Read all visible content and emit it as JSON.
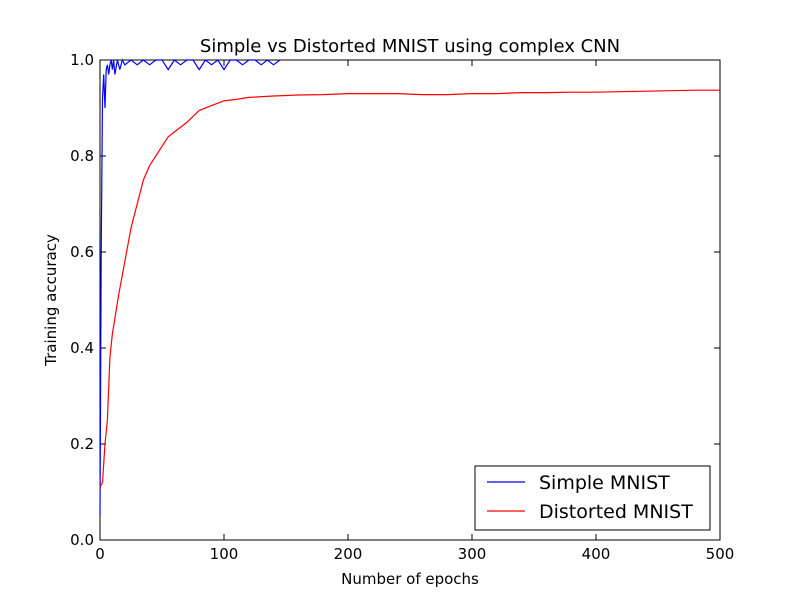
{
  "chart_data": {
    "type": "line",
    "title": "Simple vs Distorted MNIST using complex CNN",
    "xlabel": "Number of epochs",
    "ylabel": "Training accuracy",
    "xlim": [
      0,
      500
    ],
    "ylim": [
      0.0,
      1.0
    ],
    "xticks": [
      "0",
      "100",
      "200",
      "300",
      "400",
      "500"
    ],
    "yticks": [
      "0.0",
      "0.2",
      "0.4",
      "0.6",
      "0.8",
      "1.0"
    ],
    "grid": false,
    "legend_position": "lower-right",
    "series": [
      {
        "name": "Simple MNIST",
        "color": "#0000ff",
        "x": [
          0,
          1,
          2,
          3,
          4,
          5,
          6,
          7,
          8,
          9,
          10,
          11,
          12,
          14,
          16,
          18,
          20,
          25,
          30,
          35,
          40,
          45,
          50,
          55,
          60,
          65,
          70,
          75,
          80,
          85,
          90,
          95,
          100,
          105,
          110,
          115,
          120,
          125,
          130,
          135,
          140,
          145
        ],
        "y": [
          0.05,
          0.6,
          0.92,
          0.97,
          0.9,
          0.98,
          0.99,
          0.97,
          0.99,
          1.0,
          0.98,
          1.0,
          0.97,
          1.0,
          0.98,
          1.0,
          0.99,
          1.0,
          0.99,
          1.0,
          0.99,
          1.0,
          1.0,
          0.98,
          1.0,
          0.99,
          1.0,
          1.0,
          0.98,
          1.0,
          0.99,
          1.0,
          0.98,
          1.0,
          1.0,
          0.99,
          1.0,
          1.0,
          0.99,
          1.0,
          0.99,
          1.0
        ]
      },
      {
        "name": "Distorted MNIST",
        "color": "#ff0000",
        "x": [
          0,
          2,
          4,
          6,
          8,
          10,
          15,
          20,
          25,
          30,
          35,
          40,
          45,
          50,
          55,
          60,
          70,
          80,
          90,
          100,
          110,
          120,
          140,
          160,
          180,
          200,
          220,
          240,
          260,
          280,
          300,
          320,
          340,
          360,
          380,
          400,
          420,
          440,
          460,
          480,
          500
        ],
        "y": [
          0.11,
          0.12,
          0.2,
          0.25,
          0.38,
          0.43,
          0.51,
          0.58,
          0.65,
          0.7,
          0.75,
          0.78,
          0.8,
          0.82,
          0.84,
          0.85,
          0.87,
          0.895,
          0.905,
          0.915,
          0.918,
          0.922,
          0.925,
          0.927,
          0.928,
          0.93,
          0.93,
          0.93,
          0.928,
          0.928,
          0.93,
          0.93,
          0.932,
          0.932,
          0.933,
          0.933,
          0.934,
          0.935,
          0.936,
          0.937,
          0.937
        ]
      }
    ]
  }
}
